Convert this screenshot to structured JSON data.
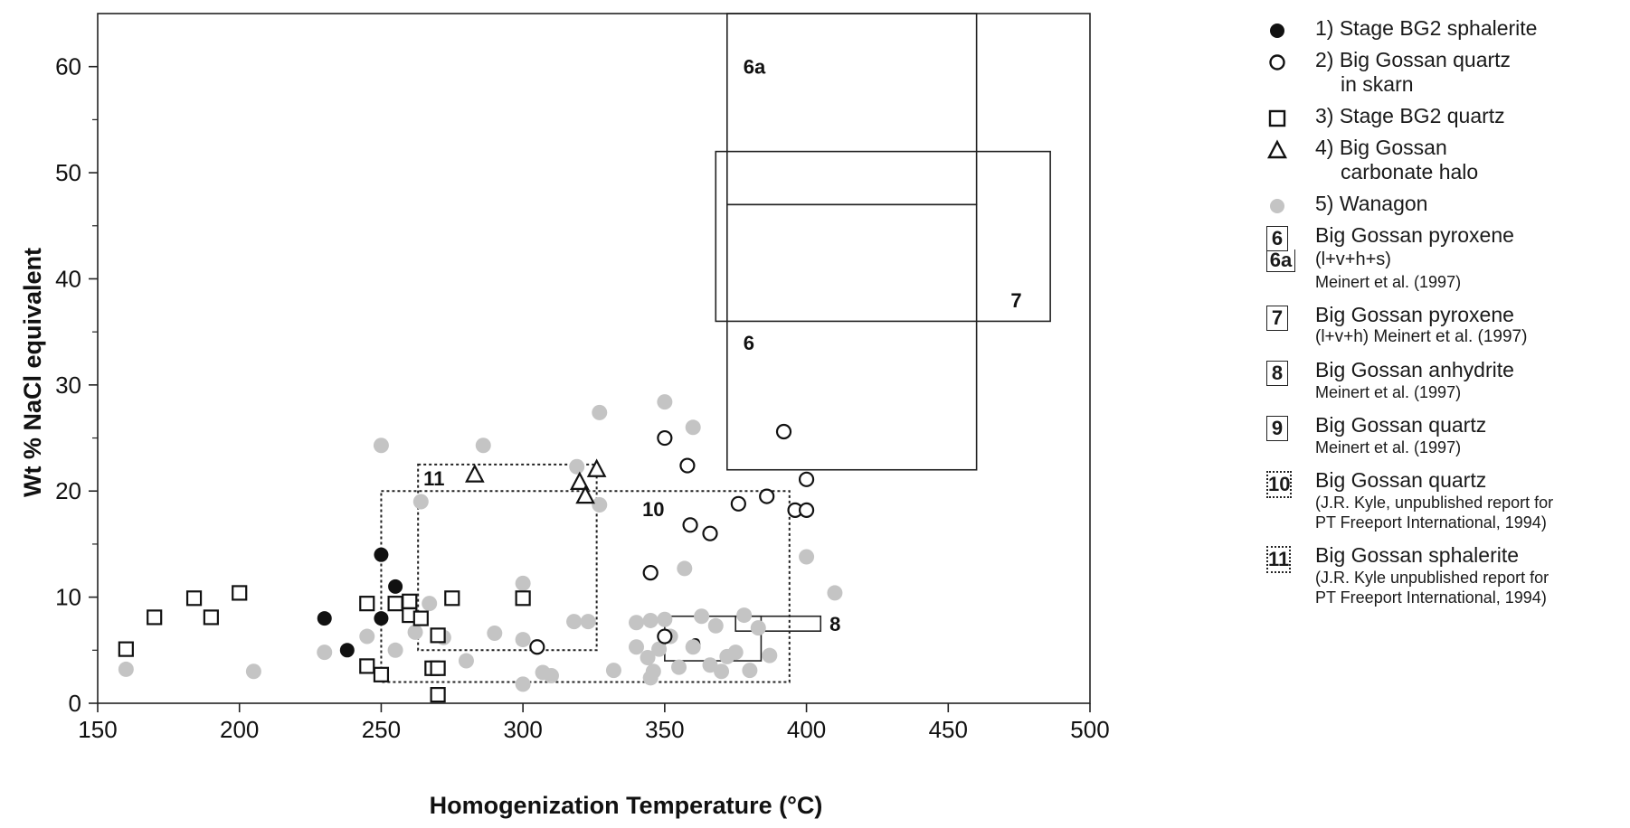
{
  "chart_data": {
    "type": "scatter",
    "xlabel": "Homogenization Temperature (°C)",
    "ylabel": "Wt % NaCl equivalent",
    "xlim": [
      150,
      500
    ],
    "ylim": [
      0,
      65
    ],
    "xticks": [
      150,
      200,
      250,
      300,
      350,
      400,
      450,
      500
    ],
    "yticks": [
      0,
      10,
      20,
      30,
      40,
      50,
      60
    ],
    "grid": false,
    "legend_position": "right",
    "series": [
      {
        "name": "1) Stage BG2 sphalerite",
        "marker": "filled-circle",
        "color": "#111111",
        "points": [
          [
            230,
            8
          ],
          [
            238,
            5
          ],
          [
            250,
            14
          ],
          [
            250,
            8
          ],
          [
            255,
            11
          ]
        ]
      },
      {
        "name": "2) Big Gossan quartz in skarn",
        "marker": "open-circle",
        "color": "#111111",
        "points": [
          [
            305,
            5.3
          ],
          [
            345,
            12.3
          ],
          [
            350,
            25
          ],
          [
            350,
            6.3
          ],
          [
            358,
            22.4
          ],
          [
            359,
            16.8
          ],
          [
            366,
            16
          ],
          [
            376,
            18.8
          ],
          [
            386,
            19.5
          ],
          [
            392,
            25.6
          ],
          [
            396,
            18.2
          ],
          [
            400,
            18.2
          ],
          [
            400,
            21.1
          ]
        ]
      },
      {
        "name": "3) Stage BG2 quartz",
        "marker": "open-square",
        "color": "#111111",
        "points": [
          [
            160,
            5.1
          ],
          [
            170,
            8.1
          ],
          [
            184,
            9.9
          ],
          [
            190,
            8.1
          ],
          [
            200,
            10.4
          ],
          [
            245,
            9.4
          ],
          [
            245,
            3.5
          ],
          [
            250,
            2.7
          ],
          [
            255,
            9.4
          ],
          [
            260,
            9.6
          ],
          [
            260,
            8.3
          ],
          [
            264,
            8
          ],
          [
            268,
            3.3
          ],
          [
            270,
            3.3
          ],
          [
            270,
            6.4
          ],
          [
            270,
            0.8
          ],
          [
            275,
            9.9
          ],
          [
            300,
            9.9
          ]
        ]
      },
      {
        "name": "4) Big Gossan carbonate halo",
        "marker": "open-triangle",
        "color": "#111111",
        "points": [
          [
            283,
            21.5
          ],
          [
            320,
            20.8
          ],
          [
            322,
            19.5
          ],
          [
            326,
            22
          ]
        ]
      },
      {
        "name": "5) Wanagon",
        "marker": "gray-dot",
        "color": "#c4c4c4",
        "points": [
          [
            160,
            3.2
          ],
          [
            205,
            3
          ],
          [
            230,
            4.8
          ],
          [
            245,
            6.3
          ],
          [
            250,
            24.3
          ],
          [
            255,
            5
          ],
          [
            262,
            6.7
          ],
          [
            264,
            19
          ],
          [
            267,
            9.4
          ],
          [
            272,
            6.2
          ],
          [
            280,
            4
          ],
          [
            286,
            24.3
          ],
          [
            290,
            6.6
          ],
          [
            300,
            11.3
          ],
          [
            300,
            6
          ],
          [
            300,
            1.8
          ],
          [
            307,
            2.9
          ],
          [
            310,
            2.6
          ],
          [
            318,
            7.7
          ],
          [
            319,
            22.3
          ],
          [
            323,
            7.7
          ],
          [
            327,
            27.4
          ],
          [
            327,
            18.7
          ],
          [
            332,
            3.1
          ],
          [
            340,
            7.6
          ],
          [
            340,
            5.3
          ],
          [
            344,
            4.3
          ],
          [
            345,
            2.4
          ],
          [
            345,
            7.8
          ],
          [
            346,
            3
          ],
          [
            348,
            5.1
          ],
          [
            350,
            28.4
          ],
          [
            350,
            7.9
          ],
          [
            352,
            6.3
          ],
          [
            355,
            3.4
          ],
          [
            357,
            12.7
          ],
          [
            360,
            26
          ],
          [
            360,
            5.3
          ],
          [
            363,
            8.2
          ],
          [
            366,
            3.6
          ],
          [
            368,
            7.3
          ],
          [
            370,
            3
          ],
          [
            372,
            4.4
          ],
          [
            375,
            4.8
          ],
          [
            378,
            8.3
          ],
          [
            380,
            3.1
          ],
          [
            383,
            7.1
          ],
          [
            387,
            4.5
          ],
          [
            400,
            13.8
          ],
          [
            410,
            10.4
          ]
        ]
      }
    ],
    "regions": [
      {
        "label": "6a",
        "x": [
          372,
          460
        ],
        "y": [
          47,
          65
        ],
        "style": "solid"
      },
      {
        "label": "6",
        "x": [
          372,
          460
        ],
        "y": [
          22,
          47
        ],
        "style": "solid"
      },
      {
        "label": "7",
        "x": [
          368,
          486
        ],
        "y": [
          36,
          52
        ],
        "style": "solid"
      },
      {
        "label": "8",
        "x": [
          375,
          405
        ],
        "y": [
          6.8,
          8.2
        ],
        "style": "solid"
      },
      {
        "label": "9",
        "x": [
          350,
          384
        ],
        "y": [
          4,
          8.2
        ],
        "style": "solid"
      },
      {
        "label": "10",
        "x": [
          250,
          394
        ],
        "y": [
          2,
          20
        ],
        "style": "dotted"
      },
      {
        "label": "11",
        "x": [
          263,
          326
        ],
        "y": [
          5,
          22.5
        ],
        "style": "dotted"
      }
    ]
  },
  "legend": {
    "items": [
      {
        "main": "1) Stage BG2 sphalerite"
      },
      {
        "main": "2) Big Gossan quartz",
        "sub": "in skarn"
      },
      {
        "main": "3) Stage BG2 quartz"
      },
      {
        "main": "4) Big Gossan",
        "sub": "carbonate halo"
      },
      {
        "main": "5) Wanagon"
      },
      {
        "num": "6",
        "num2": "6a",
        "main": "Big Gossan pyroxene",
        "line2": "(l+v+h+s)",
        "ref": "Meinert et al. (1997)"
      },
      {
        "num": "7",
        "main": "Big Gossan pyroxene",
        "line2": "(l+v+h)  Meinert et al. (1997)"
      },
      {
        "num": "8",
        "main": "Big Gossan anhydrite",
        "ref": "Meinert et al. (1997)"
      },
      {
        "num": "9",
        "main": "Big Gossan quartz",
        "ref": "Meinert et al. (1997)"
      },
      {
        "num": "10",
        "main": "Big Gossan quartz",
        "ref": "(J.R. Kyle, unpublished report for",
        "ref2": "PT Freeport International, 1994)"
      },
      {
        "num": "11",
        "main": "Big Gossan sphalerite",
        "ref": "(J.R. Kyle unpublished report for",
        "ref2": "PT Freeport International, 1994)"
      }
    ]
  }
}
